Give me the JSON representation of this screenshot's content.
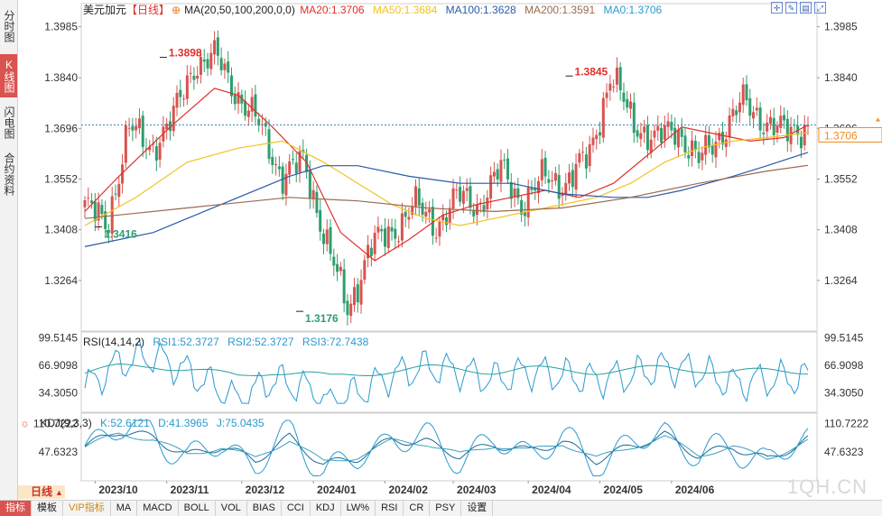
{
  "left_tabs": [
    {
      "label": "分时图",
      "active": false
    },
    {
      "label": "K线图",
      "active": true
    },
    {
      "label": "闪电图",
      "active": false
    },
    {
      "label": "合约资料",
      "active": false
    }
  ],
  "header": {
    "symbol": "美元加元",
    "period_tag": "【日线】",
    "ma_settings": "MA(20,50,100,200,0,0)",
    "ma_values": [
      {
        "label": "MA20:1.3706",
        "color": "#e0302a"
      },
      {
        "label": "MA50:1.3684",
        "color": "#f0c420"
      },
      {
        "label": "MA100:1.3628",
        "color": "#2a5aa8"
      },
      {
        "label": "MA200:1.3591",
        "color": "#9a6a50"
      },
      {
        "label": "MA0:1.3706",
        "color": "#2a9ad0"
      }
    ]
  },
  "rsi_header": {
    "settings": "RSI(14,14,2)",
    "values": [
      {
        "label": "RSI1:52.3727",
        "color": "#2a9ad0"
      },
      {
        "label": "RSI2:52.3727",
        "color": "#2a9ad0"
      },
      {
        "label": "RSI3:72.7438",
        "color": "#2a9ad0"
      }
    ]
  },
  "kdj_header": {
    "settings": "KDJ(9,3,3)",
    "values": [
      {
        "label": "K:52.6121",
        "color": "#2a9ad0"
      },
      {
        "label": "D:41.3965",
        "color": "#2a9ad0"
      },
      {
        "label": "J:75.0435",
        "color": "#2a9ad0"
      }
    ]
  },
  "top_icons": [
    "crosshair-icon",
    "drawing-icon",
    "layout-icon",
    "fullscreen-icon"
  ],
  "period_label": "日线",
  "bottom_tabs": [
    "指标",
    "模板",
    "VIP指标",
    "MA",
    "MACD",
    "BOLL",
    "VOL",
    "BIAS",
    "CCI",
    "KDJ",
    "LW%",
    "RSI",
    "CR",
    "PSY",
    "设置"
  ],
  "watermark": "1QH.CN",
  "colors": {
    "up": "#d9534f",
    "down": "#2e9e6e",
    "price_line": "#3a8ac0",
    "last_price": "#f08c1e"
  },
  "chart_data": {
    "type": "candlestick",
    "price_axis": {
      "ticks": [
        "1.3985",
        "1.3840",
        "1.3696",
        "1.3552",
        "1.3408",
        "1.3264"
      ],
      "range": [
        1.312,
        1.402
      ]
    },
    "time_axis": {
      "ticks": [
        "2023/10",
        "2023/11",
        "2023/12",
        "2024/01",
        "2024/02",
        "2024/03",
        "2024/04",
        "2024/05",
        "2024/06"
      ]
    },
    "current_price": "1.3706",
    "annotations": [
      {
        "label": "1.3898",
        "value": 1.3898,
        "color": "#e0302a"
      },
      {
        "label": "1.3416",
        "value": 1.3416,
        "color": "#2e9e6e"
      },
      {
        "label": "1.3176",
        "value": 1.3176,
        "color": "#2e9e6e"
      },
      {
        "label": "1.3845",
        "value": 1.3845,
        "color": "#e0302a"
      }
    ],
    "price_key_points": [
      {
        "date": "2023-09-25",
        "close": 1.348
      },
      {
        "date": "2023-09-27",
        "close": 1.3416
      },
      {
        "date": "2023-10-05",
        "close": 1.37
      },
      {
        "date": "2023-10-13",
        "close": 1.364
      },
      {
        "date": "2023-10-20",
        "close": 1.372
      },
      {
        "date": "2023-10-31",
        "close": 1.388
      },
      {
        "date": "2023-11-01",
        "close": 1.3898
      },
      {
        "date": "2023-11-10",
        "close": 1.379
      },
      {
        "date": "2023-11-20",
        "close": 1.37
      },
      {
        "date": "2023-11-28",
        "close": 1.356
      },
      {
        "date": "2023-12-07",
        "close": 1.36
      },
      {
        "date": "2023-12-15",
        "close": 1.338
      },
      {
        "date": "2023-12-27",
        "close": 1.3176
      },
      {
        "date": "2024-01-05",
        "close": 1.336
      },
      {
        "date": "2024-01-12",
        "close": 1.34
      },
      {
        "date": "2024-01-22",
        "close": 1.348
      },
      {
        "date": "2024-01-31",
        "close": 1.342
      },
      {
        "date": "2024-02-08",
        "close": 1.35
      },
      {
        "date": "2024-02-16",
        "close": 1.348
      },
      {
        "date": "2024-02-28",
        "close": 1.358
      },
      {
        "date": "2024-03-08",
        "close": 1.348
      },
      {
        "date": "2024-03-18",
        "close": 1.356
      },
      {
        "date": "2024-03-28",
        "close": 1.354
      },
      {
        "date": "2024-04-08",
        "close": 1.362
      },
      {
        "date": "2024-04-16",
        "close": 1.3845
      },
      {
        "date": "2024-04-25",
        "close": 1.372
      },
      {
        "date": "2024-05-03",
        "close": 1.366
      },
      {
        "date": "2024-05-10",
        "close": 1.37
      },
      {
        "date": "2024-05-20",
        "close": 1.36
      },
      {
        "date": "2024-05-30",
        "close": 1.368
      },
      {
        "date": "2024-06-07",
        "close": 1.377
      },
      {
        "date": "2024-06-14",
        "close": 1.372
      },
      {
        "date": "2024-06-21",
        "close": 1.368
      },
      {
        "date": "2024-06-27",
        "close": 1.3706
      }
    ],
    "ma_series": [
      {
        "name": "MA20",
        "color": "#e0302a",
        "points": [
          [
            0,
            1.346
          ],
          [
            10,
            1.356
          ],
          [
            25,
            1.37
          ],
          [
            38,
            1.381
          ],
          [
            45,
            1.379
          ],
          [
            55,
            1.37
          ],
          [
            65,
            1.36
          ],
          [
            75,
            1.34
          ],
          [
            85,
            1.332
          ],
          [
            95,
            1.338
          ],
          [
            105,
            1.345
          ],
          [
            115,
            1.348
          ],
          [
            125,
            1.35
          ],
          [
            135,
            1.352
          ],
          [
            145,
            1.35
          ],
          [
            155,
            1.354
          ],
          [
            165,
            1.362
          ],
          [
            175,
            1.37
          ],
          [
            185,
            1.368
          ],
          [
            195,
            1.366
          ],
          [
            205,
            1.367
          ],
          [
            212,
            1.3706
          ]
        ]
      },
      {
        "name": "MA50",
        "color": "#f0c420",
        "points": [
          [
            0,
            1.342
          ],
          [
            15,
            1.35
          ],
          [
            30,
            1.36
          ],
          [
            45,
            1.364
          ],
          [
            58,
            1.366
          ],
          [
            70,
            1.36
          ],
          [
            80,
            1.354
          ],
          [
            90,
            1.348
          ],
          [
            100,
            1.344
          ],
          [
            110,
            1.342
          ],
          [
            120,
            1.344
          ],
          [
            130,
            1.346
          ],
          [
            140,
            1.348
          ],
          [
            150,
            1.35
          ],
          [
            160,
            1.354
          ],
          [
            170,
            1.36
          ],
          [
            180,
            1.364
          ],
          [
            190,
            1.366
          ],
          [
            200,
            1.367
          ],
          [
            212,
            1.3684
          ]
        ]
      },
      {
        "name": "MA100",
        "color": "#2a5aa8",
        "points": [
          [
            0,
            1.336
          ],
          [
            20,
            1.34
          ],
          [
            40,
            1.348
          ],
          [
            60,
            1.356
          ],
          [
            70,
            1.359
          ],
          [
            80,
            1.359
          ],
          [
            95,
            1.356
          ],
          [
            110,
            1.354
          ],
          [
            125,
            1.354
          ],
          [
            140,
            1.351
          ],
          [
            155,
            1.35
          ],
          [
            165,
            1.35
          ],
          [
            175,
            1.352
          ],
          [
            190,
            1.356
          ],
          [
            200,
            1.359
          ],
          [
            212,
            1.3628
          ]
        ]
      },
      {
        "name": "MA200",
        "color": "#9a6a50",
        "points": [
          [
            0,
            1.344
          ],
          [
            30,
            1.347
          ],
          [
            60,
            1.35
          ],
          [
            80,
            1.349
          ],
          [
            100,
            1.347
          ],
          [
            120,
            1.346
          ],
          [
            140,
            1.347
          ],
          [
            160,
            1.35
          ],
          [
            180,
            1.354
          ],
          [
            200,
            1.3575
          ],
          [
            212,
            1.3591
          ]
        ]
      }
    ],
    "rsi": {
      "axis_ticks": [
        "99.5145",
        "66.9098",
        "34.3050"
      ],
      "key_points": [
        [
          0,
          40
        ],
        [
          10,
          70
        ],
        [
          20,
          78
        ],
        [
          30,
          60
        ],
        [
          45,
          25
        ],
        [
          55,
          50
        ],
        [
          65,
          40
        ],
        [
          72,
          20
        ],
        [
          80,
          35
        ],
        [
          90,
          55
        ],
        [
          100,
          65
        ],
        [
          110,
          60
        ],
        [
          120,
          50
        ],
        [
          130,
          60
        ],
        [
          140,
          55
        ],
        [
          150,
          50
        ],
        [
          160,
          55
        ],
        [
          170,
          65
        ],
        [
          180,
          60
        ],
        [
          190,
          45
        ],
        [
          200,
          50
        ],
        [
          212,
          52.37
        ]
      ]
    },
    "kdj": {
      "axis_ticks": [
        "110.7222",
        "47.6323"
      ],
      "key_points": [
        [
          0,
          60
        ],
        [
          10,
          95
        ],
        [
          20,
          80
        ],
        [
          30,
          40
        ],
        [
          40,
          60
        ],
        [
          50,
          30
        ],
        [
          60,
          80
        ],
        [
          70,
          20
        ],
        [
          80,
          35
        ],
        [
          90,
          75
        ],
        [
          100,
          70
        ],
        [
          110,
          40
        ],
        [
          120,
          65
        ],
        [
          130,
          50
        ],
        [
          140,
          70
        ],
        [
          150,
          30
        ],
        [
          160,
          60
        ],
        [
          170,
          85
        ],
        [
          180,
          40
        ],
        [
          190,
          60
        ],
        [
          200,
          30
        ],
        [
          212,
          75.04
        ]
      ]
    }
  }
}
